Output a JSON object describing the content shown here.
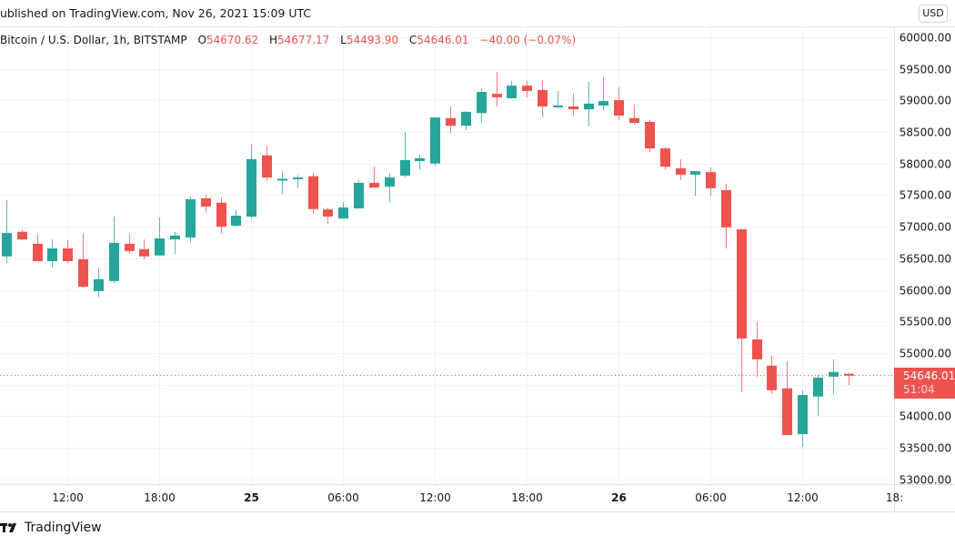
{
  "header": {
    "published": "ublished on TradingView.com, Nov 26, 2021 15:09 UTC"
  },
  "legend": {
    "symbol": "Bitcoin / U.S. Dollar, 1h, BITSTAMP",
    "open_key": "O",
    "open": "54670.62",
    "high_key": "H",
    "high": "54677.17",
    "low_key": "L",
    "low": "54493.90",
    "close_key": "C",
    "close": "54646.01",
    "change": "−40.00 (−0.07%)"
  },
  "price_axis": {
    "currency": "USD",
    "last_price": "54646.01",
    "countdown": "51:04"
  },
  "footer": {
    "brand": "TradingView",
    "logo_icon": "tradingview-logo-icon"
  },
  "colors": {
    "up": "#26a69a",
    "down": "#ef5350",
    "grid": "#f0f3fa",
    "text": "#131722"
  },
  "chart_data": {
    "type": "candlestick",
    "title": "Bitcoin / U.S. Dollar, 1h, BITSTAMP",
    "interval": "1h",
    "ylim": [
      53000,
      60000
    ],
    "yticks": [
      "60000.00",
      "59500.00",
      "59000.00",
      "58500.00",
      "58000.00",
      "57500.00",
      "57000.00",
      "56500.00",
      "56000.00",
      "55500.00",
      "55000.00",
      "54500.00",
      "54000.00",
      "53500.00",
      "53000.00"
    ],
    "xticks": [
      {
        "label": "12:00",
        "time": "2021-11-24 12:00",
        "bold": false
      },
      {
        "label": "18:00",
        "time": "2021-11-24 18:00",
        "bold": false
      },
      {
        "label": "25",
        "time": "2021-11-25 00:00",
        "bold": true
      },
      {
        "label": "06:00",
        "time": "2021-11-25 06:00",
        "bold": false
      },
      {
        "label": "12:00",
        "time": "2021-11-25 12:00",
        "bold": false
      },
      {
        "label": "18:00",
        "time": "2021-11-25 18:00",
        "bold": false
      },
      {
        "label": "26",
        "time": "2021-11-26 00:00",
        "bold": true
      },
      {
        "label": "06:00",
        "time": "2021-11-26 06:00",
        "bold": false
      },
      {
        "label": "12:00",
        "time": "2021-11-26 12:00",
        "bold": false
      },
      {
        "label": "18:",
        "time": "2021-11-26 18:00",
        "bold": false
      }
    ],
    "hidden_yticks": [
      "54500.00"
    ],
    "last_price": 54646.01,
    "grid": true,
    "candles": [
      {
        "t": "2021-11-24 08:00",
        "o": 56530,
        "h": 57420,
        "l": 56430,
        "c": 56900
      },
      {
        "t": "2021-11-24 09:00",
        "o": 56920,
        "h": 56950,
        "l": 56790,
        "c": 56800
      },
      {
        "t": "2021-11-24 10:00",
        "o": 56730,
        "h": 56887,
        "l": 56450,
        "c": 56455
      },
      {
        "t": "2021-11-24 11:00",
        "o": 56455,
        "h": 56800,
        "l": 56355,
        "c": 56657
      },
      {
        "t": "2021-11-24 12:00",
        "o": 56657,
        "h": 56787,
        "l": 56420,
        "c": 56455
      },
      {
        "t": "2021-11-24 13:00",
        "o": 56485,
        "h": 56900,
        "l": 56030,
        "c": 56050
      },
      {
        "t": "2021-11-24 14:00",
        "o": 55980,
        "h": 56355,
        "l": 55890,
        "c": 56170
      },
      {
        "t": "2021-11-24 15:00",
        "o": 56140,
        "h": 57160,
        "l": 56110,
        "c": 56745
      },
      {
        "t": "2021-11-24 16:00",
        "o": 56730,
        "h": 56890,
        "l": 56570,
        "c": 56615
      },
      {
        "t": "2021-11-24 17:00",
        "o": 56645,
        "h": 56800,
        "l": 56485,
        "c": 56530
      },
      {
        "t": "2021-11-24 18:00",
        "o": 56545,
        "h": 57150,
        "l": 56545,
        "c": 56815
      },
      {
        "t": "2021-11-24 19:00",
        "o": 56800,
        "h": 56915,
        "l": 56570,
        "c": 56860
      },
      {
        "t": "2021-11-24 20:00",
        "o": 56830,
        "h": 57480,
        "l": 56745,
        "c": 57435
      },
      {
        "t": "2021-11-24 21:00",
        "o": 57450,
        "h": 57510,
        "l": 57220,
        "c": 57320
      },
      {
        "t": "2021-11-24 22:00",
        "o": 57380,
        "h": 57465,
        "l": 56890,
        "c": 57000
      },
      {
        "t": "2021-11-24 23:00",
        "o": 57015,
        "h": 57260,
        "l": 57000,
        "c": 57175
      },
      {
        "t": "2021-11-25 00:00",
        "o": 57160,
        "h": 58300,
        "l": 57130,
        "c": 58070
      },
      {
        "t": "2021-11-25 01:00",
        "o": 58130,
        "h": 58285,
        "l": 57725,
        "c": 57780
      },
      {
        "t": "2021-11-25 02:00",
        "o": 57740,
        "h": 57880,
        "l": 57520,
        "c": 57760
      },
      {
        "t": "2021-11-25 03:00",
        "o": 57760,
        "h": 57825,
        "l": 57610,
        "c": 57780
      },
      {
        "t": "2021-11-25 04:00",
        "o": 57800,
        "h": 57855,
        "l": 57205,
        "c": 57280
      },
      {
        "t": "2021-11-25 05:00",
        "o": 57275,
        "h": 57305,
        "l": 57045,
        "c": 57160
      },
      {
        "t": "2021-11-25 06:00",
        "o": 57130,
        "h": 57390,
        "l": 57130,
        "c": 57305
      },
      {
        "t": "2021-11-25 07:00",
        "o": 57290,
        "h": 57740,
        "l": 57290,
        "c": 57695
      },
      {
        "t": "2021-11-25 08:00",
        "o": 57695,
        "h": 57955,
        "l": 57620,
        "c": 57620
      },
      {
        "t": "2021-11-25 09:00",
        "o": 57635,
        "h": 57855,
        "l": 57390,
        "c": 57780
      },
      {
        "t": "2021-11-25 10:00",
        "o": 57810,
        "h": 58500,
        "l": 57780,
        "c": 58055
      },
      {
        "t": "2021-11-25 11:00",
        "o": 58040,
        "h": 58140,
        "l": 57900,
        "c": 58085
      },
      {
        "t": "2021-11-25 12:00",
        "o": 58000,
        "h": 58730,
        "l": 57970,
        "c": 58730
      },
      {
        "t": "2021-11-25 13:00",
        "o": 58720,
        "h": 58905,
        "l": 58485,
        "c": 58600
      },
      {
        "t": "2021-11-25 14:00",
        "o": 58600,
        "h": 58830,
        "l": 58530,
        "c": 58820
      },
      {
        "t": "2021-11-25 15:00",
        "o": 58800,
        "h": 59180,
        "l": 58645,
        "c": 59135
      },
      {
        "t": "2021-11-25 16:00",
        "o": 59105,
        "h": 59450,
        "l": 58905,
        "c": 59050
      },
      {
        "t": "2021-11-25 17:00",
        "o": 59035,
        "h": 59310,
        "l": 59035,
        "c": 59235
      },
      {
        "t": "2021-11-25 18:00",
        "o": 59235,
        "h": 59310,
        "l": 59050,
        "c": 59150
      },
      {
        "t": "2021-11-25 19:00",
        "o": 59165,
        "h": 59310,
        "l": 58730,
        "c": 58905
      },
      {
        "t": "2021-11-25 20:00",
        "o": 58905,
        "h": 59150,
        "l": 58875,
        "c": 58920
      },
      {
        "t": "2021-11-25 21:00",
        "o": 58905,
        "h": 59105,
        "l": 58760,
        "c": 58860
      },
      {
        "t": "2021-11-25 22:00",
        "o": 58860,
        "h": 59295,
        "l": 58590,
        "c": 58950
      },
      {
        "t": "2021-11-25 23:00",
        "o": 58920,
        "h": 59370,
        "l": 58830,
        "c": 58990
      },
      {
        "t": "2021-11-26 00:00",
        "o": 59005,
        "h": 59210,
        "l": 58690,
        "c": 58760
      },
      {
        "t": "2021-11-26 01:00",
        "o": 58720,
        "h": 58935,
        "l": 58615,
        "c": 58645
      },
      {
        "t": "2021-11-26 02:00",
        "o": 58660,
        "h": 58690,
        "l": 58185,
        "c": 58240
      },
      {
        "t": "2021-11-26 03:00",
        "o": 58240,
        "h": 58255,
        "l": 57900,
        "c": 57950
      },
      {
        "t": "2021-11-26 04:00",
        "o": 57925,
        "h": 58070,
        "l": 57740,
        "c": 57825
      },
      {
        "t": "2021-11-26 05:00",
        "o": 57825,
        "h": 57880,
        "l": 57490,
        "c": 57880
      },
      {
        "t": "2021-11-26 06:00",
        "o": 57865,
        "h": 57940,
        "l": 57480,
        "c": 57610
      },
      {
        "t": "2021-11-26 07:00",
        "o": 57580,
        "h": 57680,
        "l": 56655,
        "c": 56990
      },
      {
        "t": "2021-11-26 08:00",
        "o": 56960,
        "h": 56960,
        "l": 54380,
        "c": 55230
      },
      {
        "t": "2021-11-26 09:00",
        "o": 55215,
        "h": 55500,
        "l": 54625,
        "c": 54900
      },
      {
        "t": "2021-11-26 10:00",
        "o": 54800,
        "h": 54960,
        "l": 54350,
        "c": 54410
      },
      {
        "t": "2021-11-26 11:00",
        "o": 54440,
        "h": 54870,
        "l": 53700,
        "c": 53700
      },
      {
        "t": "2021-11-26 12:00",
        "o": 53715,
        "h": 54410,
        "l": 53515,
        "c": 54335
      },
      {
        "t": "2021-11-26 13:00",
        "o": 54310,
        "h": 54650,
        "l": 54005,
        "c": 54610
      },
      {
        "t": "2021-11-26 14:00",
        "o": 54625,
        "h": 54900,
        "l": 54350,
        "c": 54700
      },
      {
        "t": "2021-11-26 15:00",
        "o": 54670.62,
        "h": 54677.17,
        "l": 54493.9,
        "c": 54646.01
      }
    ]
  }
}
